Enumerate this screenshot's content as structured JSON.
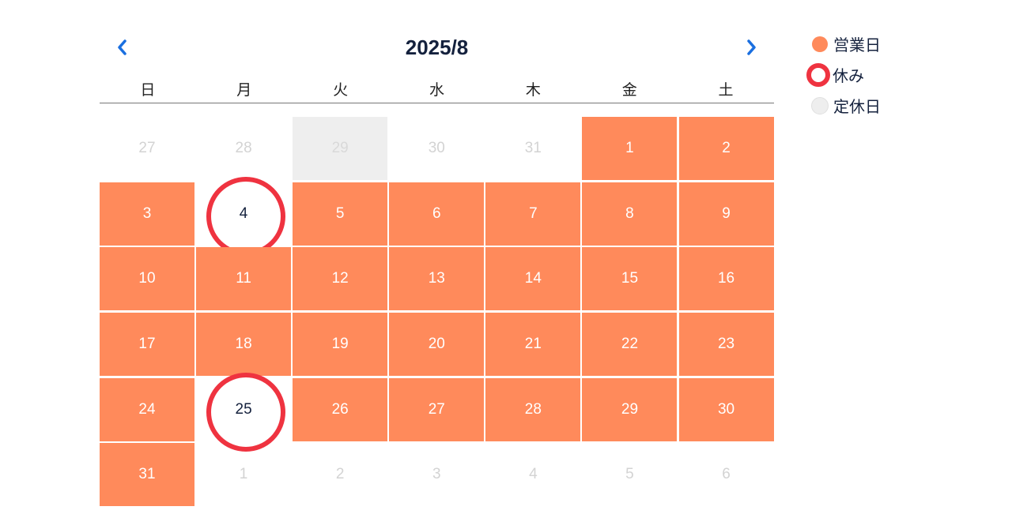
{
  "calendar": {
    "title": "2025/8",
    "weekdays": [
      "日",
      "月",
      "火",
      "水",
      "木",
      "金",
      "土"
    ],
    "days": [
      {
        "label": "27",
        "status": "other"
      },
      {
        "label": "28",
        "status": "other"
      },
      {
        "label": "29",
        "status": "regular-holiday-other"
      },
      {
        "label": "30",
        "status": "other"
      },
      {
        "label": "31",
        "status": "other"
      },
      {
        "label": "1",
        "status": "open"
      },
      {
        "label": "2",
        "status": "open"
      },
      {
        "label": "3",
        "status": "open"
      },
      {
        "label": "4",
        "status": "rest"
      },
      {
        "label": "5",
        "status": "open"
      },
      {
        "label": "6",
        "status": "open"
      },
      {
        "label": "7",
        "status": "open"
      },
      {
        "label": "8",
        "status": "open"
      },
      {
        "label": "9",
        "status": "open"
      },
      {
        "label": "10",
        "status": "open"
      },
      {
        "label": "11",
        "status": "open"
      },
      {
        "label": "12",
        "status": "open"
      },
      {
        "label": "13",
        "status": "open"
      },
      {
        "label": "14",
        "status": "open"
      },
      {
        "label": "15",
        "status": "open"
      },
      {
        "label": "16",
        "status": "open"
      },
      {
        "label": "17",
        "status": "open"
      },
      {
        "label": "18",
        "status": "open"
      },
      {
        "label": "19",
        "status": "open"
      },
      {
        "label": "20",
        "status": "open"
      },
      {
        "label": "21",
        "status": "open"
      },
      {
        "label": "22",
        "status": "open"
      },
      {
        "label": "23",
        "status": "open"
      },
      {
        "label": "24",
        "status": "open"
      },
      {
        "label": "25",
        "status": "rest"
      },
      {
        "label": "26",
        "status": "open"
      },
      {
        "label": "27",
        "status": "open"
      },
      {
        "label": "28",
        "status": "open"
      },
      {
        "label": "29",
        "status": "open"
      },
      {
        "label": "30",
        "status": "open"
      },
      {
        "label": "31",
        "status": "open"
      },
      {
        "label": "1",
        "status": "other"
      },
      {
        "label": "2",
        "status": "other"
      },
      {
        "label": "3",
        "status": "other"
      },
      {
        "label": "4",
        "status": "other"
      },
      {
        "label": "5",
        "status": "other"
      },
      {
        "label": "6",
        "status": "other"
      }
    ]
  },
  "nav": {
    "prev_icon": "chevron-left-icon",
    "next_icon": "chevron-right-icon"
  },
  "legend": [
    {
      "label": "営業日",
      "kind": "open"
    },
    {
      "label": "休み",
      "kind": "rest"
    },
    {
      "label": "定休日",
      "kind": "regular"
    }
  ],
  "colors": {
    "open": "#ff8a5b",
    "rest_ring": "#ef3340",
    "regular_holiday": "#eeeeee",
    "nav_accent": "#1a6fe0",
    "title": "#14213d"
  }
}
